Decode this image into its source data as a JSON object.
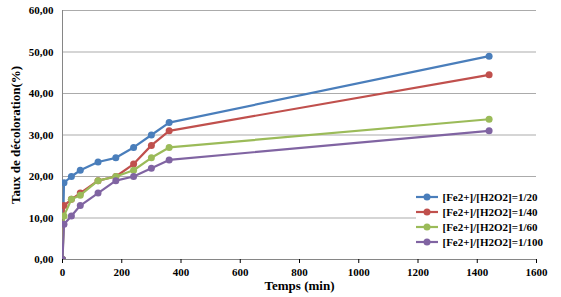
{
  "chart_data": {
    "type": "line",
    "x_label": "Temps (min)",
    "y_label": "Taux de décoloration(%)",
    "xlim": [
      0,
      1600
    ],
    "xticks": [
      0,
      200,
      400,
      600,
      800,
      1000,
      1200,
      1400,
      1600
    ],
    "ylim": [
      0,
      60
    ],
    "yticks": [
      {
        "value": 0,
        "label": "0,00"
      },
      {
        "value": 10,
        "label": "10,00"
      },
      {
        "value": 20,
        "label": "20,00"
      },
      {
        "value": 30,
        "label": "30,00"
      },
      {
        "value": 40,
        "label": "40,00"
      },
      {
        "value": 50,
        "label": "50,00"
      },
      {
        "value": 60,
        "label": "60,00"
      }
    ],
    "grid": true,
    "legend": "lower right",
    "marker": "circle",
    "x": [
      0,
      5,
      30,
      60,
      120,
      180,
      240,
      300,
      360,
      1440
    ],
    "series": [
      {
        "name": "[Fe2+]/[H2O2]=1/20",
        "color": "#4a7ebb",
        "values": [
          0,
          18.5,
          20,
          21.5,
          23.5,
          24.5,
          27,
          30,
          33,
          49
        ]
      },
      {
        "name": "[Fe2+]/[H2O2]=1/40",
        "color": "#c0504d",
        "values": [
          0,
          13,
          14.5,
          16,
          19,
          20,
          23,
          27.5,
          31,
          44.5
        ]
      },
      {
        "name": "[Fe2+]/[H2O2]=1/60",
        "color": "#9bbb59",
        "values": [
          0,
          10.5,
          14.5,
          15.5,
          19,
          20,
          21.5,
          24.5,
          27,
          33.8
        ]
      },
      {
        "name": "[Fe2+]/[H2O2]=1/100",
        "color": "#8064a2",
        "values": [
          0,
          8.5,
          10.5,
          13,
          16,
          19,
          20,
          22,
          24,
          31
        ]
      }
    ]
  }
}
